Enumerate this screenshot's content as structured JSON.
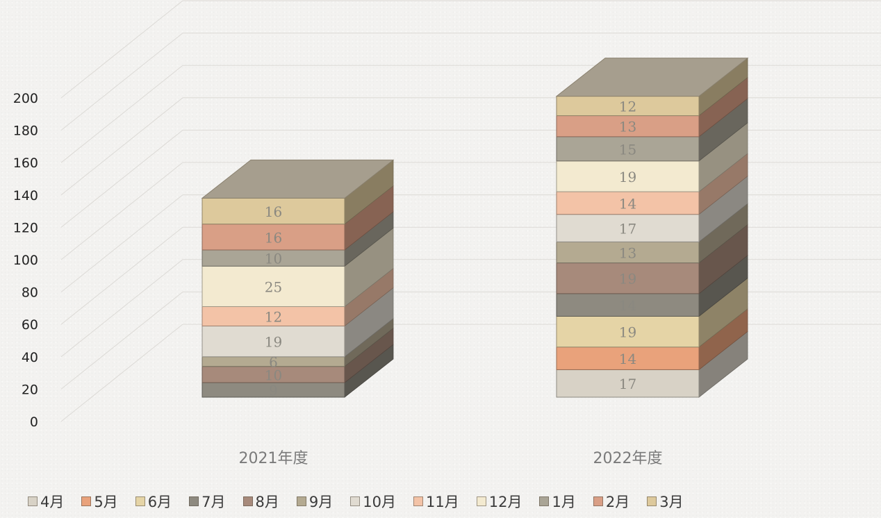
{
  "chart_data": {
    "type": "bar",
    "stacked": true,
    "style": "3d-stacked-column",
    "categories": [
      "2021年度",
      "2022年度"
    ],
    "series": [
      {
        "name": "4月",
        "values": [
          0,
          17
        ],
        "color": "#d8d2c6"
      },
      {
        "name": "5月",
        "values": [
          0,
          14
        ],
        "color": "#e9a27b"
      },
      {
        "name": "6月",
        "values": [
          0,
          19
        ],
        "color": "#e5d4a6"
      },
      {
        "name": "7月",
        "values": [
          9,
          14
        ],
        "color": "#8e8a80"
      },
      {
        "name": "8月",
        "values": [
          10,
          19
        ],
        "color": "#a78a7b"
      },
      {
        "name": "9月",
        "values": [
          6,
          13
        ],
        "color": "#b4aa91"
      },
      {
        "name": "10月",
        "values": [
          19,
          17
        ],
        "color": "#e0dbd1"
      },
      {
        "name": "11月",
        "values": [
          12,
          14
        ],
        "color": "#f3c3a7"
      },
      {
        "name": "12月",
        "values": [
          25,
          19
        ],
        "color": "#f3ead0"
      },
      {
        "name": "1月",
        "values": [
          10,
          15
        ],
        "color": "#aaa596"
      },
      {
        "name": "2月",
        "values": [
          16,
          13
        ],
        "color": "#d99f86"
      },
      {
        "name": "3月",
        "values": [
          16,
          12
        ],
        "color": "#ddc99c"
      }
    ],
    "yticks": [
      0,
      20,
      40,
      60,
      80,
      100,
      120,
      140,
      160,
      180,
      200
    ],
    "ylim": [
      0,
      200
    ],
    "grid": true,
    "legend_position": "bottom"
  }
}
